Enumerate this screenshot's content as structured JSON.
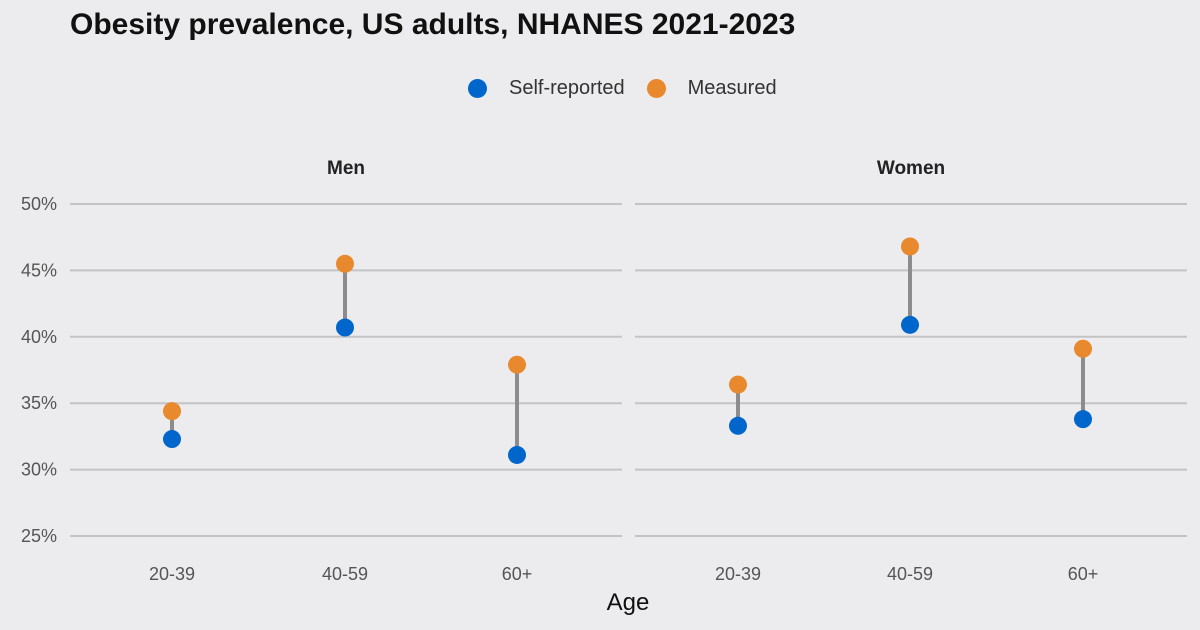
{
  "chart_data": {
    "type": "dumbbell",
    "title": "Obesity prevalence, US adults, NHANES 2021-2023",
    "xlabel": "Age",
    "ylabel": "",
    "ylim": [
      25,
      50
    ],
    "yticks": [
      "25%",
      "30%",
      "35%",
      "40%",
      "45%",
      "50%"
    ],
    "categories": [
      "20-39",
      "40-59",
      "60+"
    ],
    "legend": {
      "position": "top-center"
    },
    "series": [
      {
        "name": "Self-reported",
        "color": "#0066cc"
      },
      {
        "name": "Measured",
        "color": "#e8892e"
      }
    ],
    "connector_color": "#8c8c8c",
    "gridlines": true,
    "panels": [
      {
        "name": "Men",
        "self_reported": [
          32.3,
          40.7,
          31.1
        ],
        "measured": [
          34.4,
          45.5,
          37.9
        ]
      },
      {
        "name": "Women",
        "self_reported": [
          33.3,
          40.9,
          33.8
        ],
        "measured": [
          36.4,
          46.8,
          39.1
        ]
      }
    ]
  }
}
